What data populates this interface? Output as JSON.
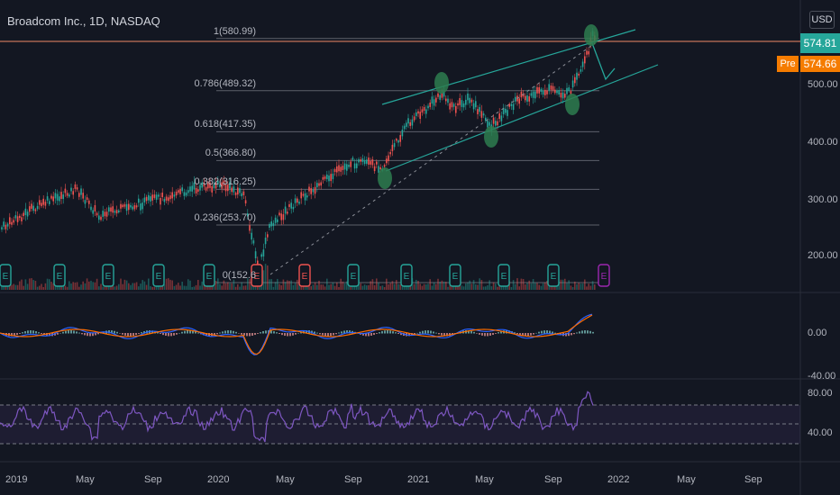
{
  "header": {
    "title": "Broadcom Inc., 1D, NASDAQ",
    "currency": "USD"
  },
  "price_tag": {
    "last": "574.81",
    "pre_label": "Pre",
    "pre_value": "574.66"
  },
  "fib_levels": [
    {
      "label": "1(580.99)",
      "value": 580.99
    },
    {
      "label": "0.786(489.32)",
      "value": 489.32
    },
    {
      "label": "0.618(417.35)",
      "value": 417.35
    },
    {
      "label": "0.5(366.80)",
      "value": 366.8
    },
    {
      "label": "0.382(316.25)",
      "value": 316.25
    },
    {
      "label": "0.236(253.70)",
      "value": 253.7
    },
    {
      "label": "0(152.6",
      "value": 152.6
    }
  ],
  "price_axis": [
    "500.00",
    "400.00",
    "300.00",
    "200.00"
  ],
  "macd_axis": [
    "0.00",
    "-40.00"
  ],
  "rsi_axis": [
    "80.00",
    "40.00"
  ],
  "time_axis": [
    "2019",
    "May",
    "Sep",
    "2020",
    "May",
    "Sep",
    "2021",
    "May",
    "Sep",
    "2022",
    "May",
    "Sep"
  ],
  "earnings_marker": "E",
  "colors": {
    "up": "#26a69a",
    "down": "#ef5350",
    "fib": "#5d606b",
    "channel": "#26a69a",
    "macd": "#2962ff",
    "signal": "#ff6d00",
    "rsi": "#7e57c2",
    "marker": "#2e7d4f"
  }
}
